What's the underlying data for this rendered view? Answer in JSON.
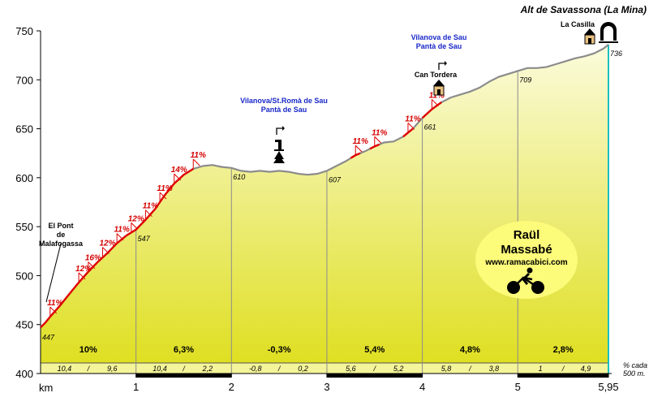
{
  "chart_data": {
    "type": "area",
    "title": "Alt de Savassona (La Mina)",
    "xlabel": "km",
    "xlim": [
      0,
      5.95
    ],
    "ylim": [
      400,
      750
    ],
    "x_ticks": [
      "1",
      "2",
      "3",
      "4",
      "5",
      "5,95"
    ],
    "y_ticks": [
      "400",
      "450",
      "500",
      "550",
      "600",
      "650",
      "700",
      "750"
    ],
    "profile": {
      "x": [
        0,
        0.05,
        0.1,
        0.2,
        0.3,
        0.4,
        0.5,
        0.6,
        0.7,
        0.8,
        0.9,
        1.0,
        1.1,
        1.2,
        1.3,
        1.4,
        1.5,
        1.6,
        1.7,
        1.8,
        1.9,
        2.0,
        2.1,
        2.2,
        2.3,
        2.4,
        2.5,
        2.6,
        2.7,
        2.8,
        2.9,
        3.0,
        3.1,
        3.2,
        3.3,
        3.4,
        3.5,
        3.6,
        3.7,
        3.8,
        3.9,
        4.0,
        4.1,
        4.2,
        4.3,
        4.4,
        4.5,
        4.6,
        4.7,
        4.8,
        4.9,
        5.0,
        5.1,
        5.2,
        5.3,
        5.4,
        5.5,
        5.6,
        5.7,
        5.8,
        5.9,
        5.95
      ],
      "y": [
        447,
        452,
        458,
        469,
        481,
        493,
        504,
        514,
        523,
        533,
        541,
        547,
        557,
        568,
        582,
        594,
        603,
        609,
        612,
        613,
        611,
        610,
        607,
        606,
        607,
        606,
        607,
        606,
        604,
        603,
        604,
        607,
        612,
        617,
        623,
        627,
        632,
        636,
        637,
        642,
        650,
        661,
        670,
        677,
        682,
        685,
        688,
        692,
        698,
        703,
        706,
        709,
        712,
        712,
        713,
        716,
        719,
        722,
        724,
        727,
        732,
        736
      ]
    },
    "point_labels": [
      {
        "x": 0,
        "y": 447,
        "label": "447"
      },
      {
        "x": 1,
        "y": 547,
        "label": "547"
      },
      {
        "x": 2,
        "y": 610,
        "label": "610"
      },
      {
        "x": 3,
        "y": 607,
        "label": "607"
      },
      {
        "x": 4,
        "y": 661,
        "label": "661"
      },
      {
        "x": 5,
        "y": 709,
        "label": "709"
      },
      {
        "x": 5.95,
        "y": 736,
        "label": "736"
      }
    ],
    "grade_markers": [
      {
        "x": 0.1,
        "y": 458,
        "label": "11%"
      },
      {
        "x": 0.4,
        "y": 493,
        "label": "12%"
      },
      {
        "x": 0.5,
        "y": 504,
        "label": "16%"
      },
      {
        "x": 0.65,
        "y": 519,
        "label": "12%"
      },
      {
        "x": 0.8,
        "y": 533,
        "label": "11%"
      },
      {
        "x": 0.95,
        "y": 544,
        "label": "12%"
      },
      {
        "x": 1.1,
        "y": 557,
        "label": "11%"
      },
      {
        "x": 1.25,
        "y": 575,
        "label": "11%"
      },
      {
        "x": 1.4,
        "y": 594,
        "label": "14%"
      },
      {
        "x": 1.6,
        "y": 609,
        "label": "11%"
      },
      {
        "x": 3.3,
        "y": 623,
        "label": "11%"
      },
      {
        "x": 3.5,
        "y": 632,
        "label": "11%"
      },
      {
        "x": 3.85,
        "y": 646,
        "label": "11%"
      },
      {
        "x": 4.1,
        "y": 670,
        "label": "11%"
      }
    ],
    "segments": [
      {
        "from": 0,
        "to": 1,
        "avg": "10%",
        "sub": [
          "10,4",
          "9,6"
        ]
      },
      {
        "from": 1,
        "to": 2,
        "avg": "6,3%",
        "sub": [
          "10,4",
          "2,2"
        ]
      },
      {
        "from": 2,
        "to": 3,
        "avg": "-0,3%",
        "sub": [
          "-0,8",
          "0,2"
        ]
      },
      {
        "from": 3,
        "to": 4,
        "avg": "5,4%",
        "sub": [
          "5,6",
          "5,2"
        ]
      },
      {
        "from": 4,
        "to": 5,
        "avg": "4,8%",
        "sub": [
          "5,8",
          "3,8"
        ]
      },
      {
        "from": 5,
        "to": 5.95,
        "avg": "2,8%",
        "sub": [
          "1",
          "4,9"
        ]
      }
    ],
    "sub_separator": "/",
    "sub_note": [
      "% cada",
      "500 m."
    ],
    "places": [
      {
        "name": "el-pont-de-malafogassa",
        "lines": [
          "El Pont",
          "de",
          "Malafogassa"
        ],
        "x": 0.05,
        "y": 452,
        "color": "black",
        "icon": "none"
      },
      {
        "name": "vilanova-st-roma",
        "lines": [
          "Vilanova/St.Romà de Sau",
          "Pantà de Sau"
        ],
        "x": 2.5,
        "y": 607,
        "color": "blue",
        "icon": "turn-left-arrow"
      },
      {
        "name": "can-tordera",
        "lines": [
          "Can Tordera"
        ],
        "x": 4.2,
        "y": 677,
        "color": "black",
        "icon": "house-icon"
      },
      {
        "name": "vilanova-de-sau",
        "lines": [
          "Vilanova de Sau",
          "Pantà de Sau"
        ],
        "x": 4.45,
        "y": 686,
        "color": "blue",
        "icon": "turn-right-arrow"
      },
      {
        "name": "la-casilla",
        "lines": [
          "La Casilla"
        ],
        "x": 5.8,
        "y": 727,
        "color": "black",
        "icon": "house-icon"
      }
    ],
    "author": {
      "line1": "Raül",
      "line2": "Massabé",
      "url": "www.ramacabici.com"
    },
    "colors": {
      "area_top": "#fbfbdc",
      "area_bottom": "#dede1c",
      "profile": "#8c8c8c",
      "climb": "#e00000",
      "grid": "#8c8c8c",
      "badge": "#fdfb7a",
      "finish_line": "#1bc0c0"
    }
  }
}
